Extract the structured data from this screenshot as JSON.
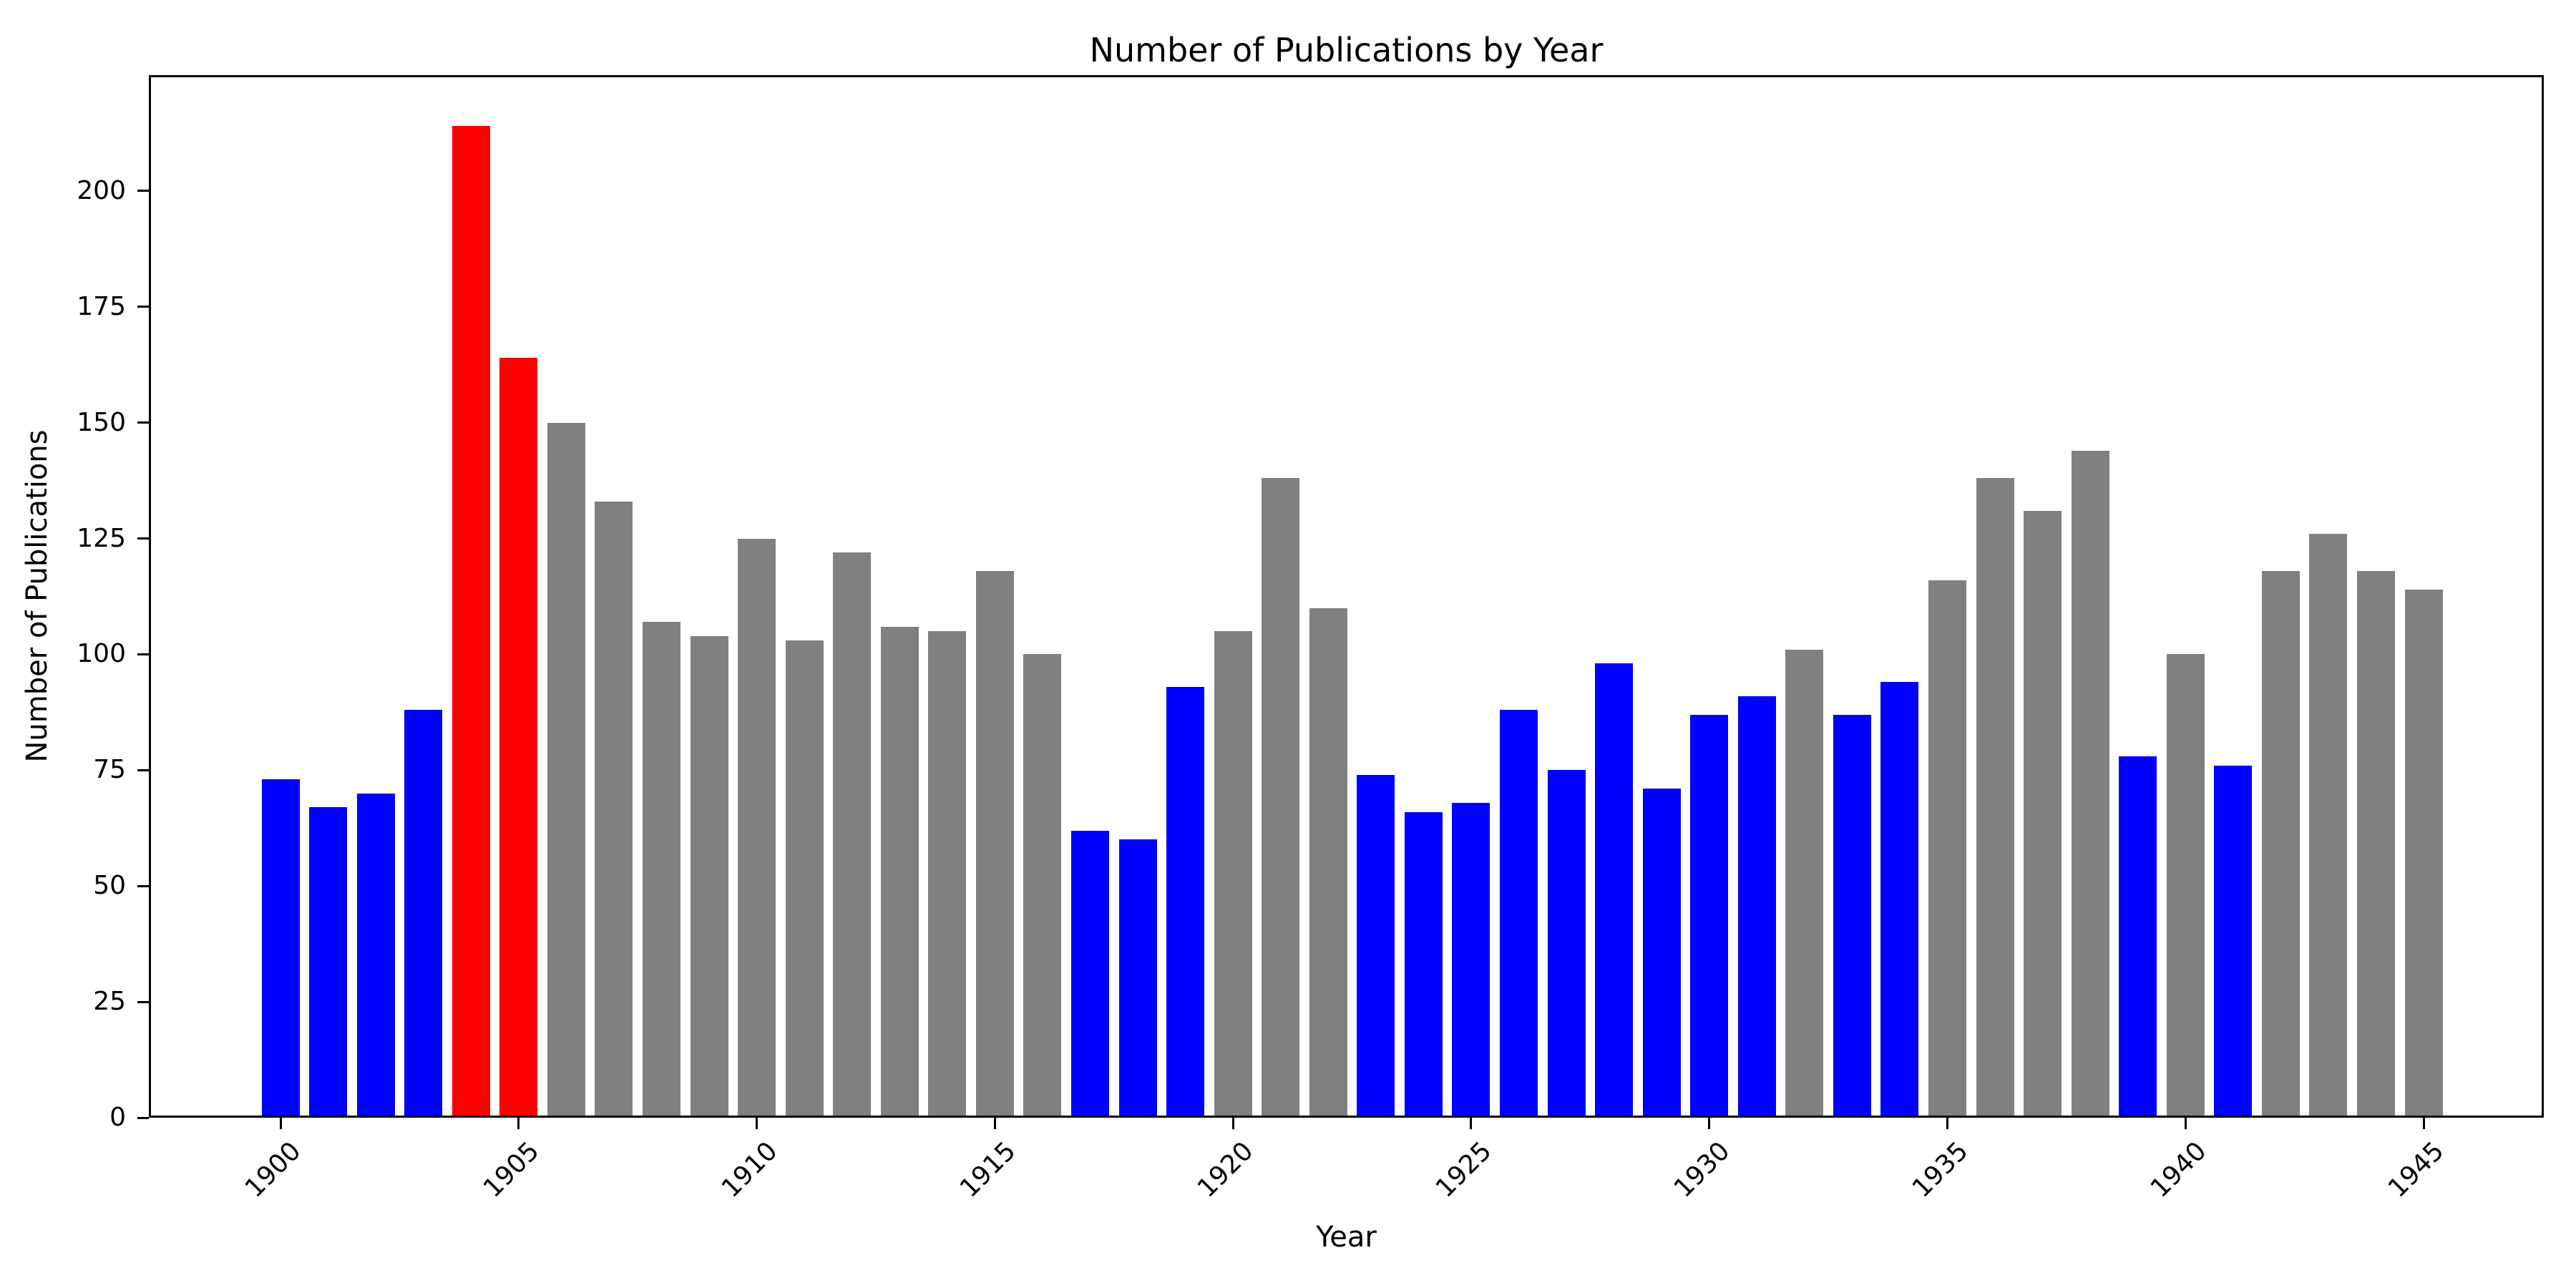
{
  "chart_data": {
    "type": "bar",
    "title": "Number of Publications by Year",
    "xlabel": "Year",
    "ylabel": "Number of Publications",
    "categories": [
      1900,
      1901,
      1902,
      1903,
      1904,
      1905,
      1906,
      1907,
      1908,
      1909,
      1910,
      1911,
      1912,
      1913,
      1914,
      1915,
      1916,
      1917,
      1918,
      1919,
      1920,
      1921,
      1922,
      1923,
      1924,
      1925,
      1926,
      1927,
      1928,
      1929,
      1930,
      1931,
      1932,
      1933,
      1934,
      1935,
      1936,
      1937,
      1938,
      1939,
      1940,
      1941,
      1942,
      1943,
      1944,
      1945
    ],
    "values": [
      73,
      67,
      70,
      88,
      214,
      164,
      150,
      133,
      107,
      104,
      125,
      103,
      122,
      106,
      105,
      118,
      100,
      62,
      60,
      93,
      105,
      138,
      110,
      74,
      66,
      68,
      88,
      75,
      98,
      71,
      87,
      91,
      101,
      87,
      94,
      116,
      138,
      131,
      144,
      78,
      100,
      76,
      118,
      126,
      118,
      114
    ],
    "bar_colors": [
      "#0000ff",
      "#0000ff",
      "#0000ff",
      "#0000ff",
      "#ff0000",
      "#ff0000",
      "#808080",
      "#808080",
      "#808080",
      "#808080",
      "#808080",
      "#808080",
      "#808080",
      "#808080",
      "#808080",
      "#808080",
      "#808080",
      "#0000ff",
      "#0000ff",
      "#0000ff",
      "#808080",
      "#808080",
      "#808080",
      "#0000ff",
      "#0000ff",
      "#0000ff",
      "#0000ff",
      "#0000ff",
      "#0000ff",
      "#0000ff",
      "#0000ff",
      "#0000ff",
      "#808080",
      "#0000ff",
      "#0000ff",
      "#808080",
      "#808080",
      "#808080",
      "#808080",
      "#0000ff",
      "#808080",
      "#0000ff",
      "#808080",
      "#808080",
      "#808080",
      "#808080"
    ],
    "colors": {
      "blue": "#0000ff",
      "red": "#ff0000",
      "gray": "#808080",
      "axis": "#000000",
      "background": "#ffffff"
    },
    "yticks": [
      0,
      25,
      50,
      75,
      100,
      125,
      150,
      175,
      200
    ],
    "xticks": [
      1900,
      1905,
      1910,
      1915,
      1920,
      1925,
      1930,
      1935,
      1940,
      1945
    ],
    "ylim": [
      0,
      225
    ],
    "grid": false,
    "legend": null,
    "xtick_rotation_deg": 45
  }
}
